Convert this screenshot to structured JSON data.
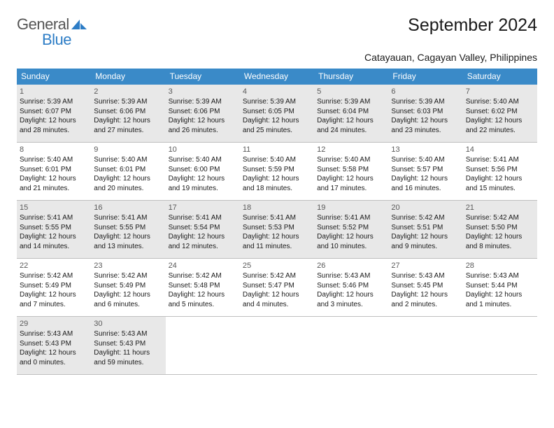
{
  "logo": {
    "text1": "General",
    "text2": "Blue"
  },
  "title": "September 2024",
  "location": "Catayauan, Cagayan Valley, Philippines",
  "colors": {
    "header_bg": "#3a8ac8",
    "header_text": "#ffffff",
    "row_top_border": "#3a8ac8",
    "row_bottom_border": "#bfbfbf",
    "gray_cell": "#e8e8e8",
    "body_text": "#1a1a1a",
    "daynum_text": "#5a5a5a",
    "logo_blue": "#2d7dc6",
    "logo_gray": "#555555"
  },
  "typography": {
    "title_fontsize": 25,
    "location_fontsize": 14,
    "dayhead_fontsize": 12,
    "daynum_fontsize": 11,
    "dayinfo_fontsize": 10
  },
  "dayheaders": [
    "Sunday",
    "Monday",
    "Tuesday",
    "Wednesday",
    "Thursday",
    "Friday",
    "Saturday"
  ],
  "weeks": [
    [
      {
        "n": "1",
        "gray": true,
        "sunrise": "5:39 AM",
        "sunset": "6:07 PM",
        "dayh": "12",
        "daym": "28"
      },
      {
        "n": "2",
        "gray": true,
        "sunrise": "5:39 AM",
        "sunset": "6:06 PM",
        "dayh": "12",
        "daym": "27"
      },
      {
        "n": "3",
        "gray": true,
        "sunrise": "5:39 AM",
        "sunset": "6:06 PM",
        "dayh": "12",
        "daym": "26"
      },
      {
        "n": "4",
        "gray": true,
        "sunrise": "5:39 AM",
        "sunset": "6:05 PM",
        "dayh": "12",
        "daym": "25"
      },
      {
        "n": "5",
        "gray": true,
        "sunrise": "5:39 AM",
        "sunset": "6:04 PM",
        "dayh": "12",
        "daym": "24"
      },
      {
        "n": "6",
        "gray": true,
        "sunrise": "5:39 AM",
        "sunset": "6:03 PM",
        "dayh": "12",
        "daym": "23"
      },
      {
        "n": "7",
        "gray": true,
        "sunrise": "5:40 AM",
        "sunset": "6:02 PM",
        "dayh": "12",
        "daym": "22"
      }
    ],
    [
      {
        "n": "8",
        "sunrise": "5:40 AM",
        "sunset": "6:01 PM",
        "dayh": "12",
        "daym": "21"
      },
      {
        "n": "9",
        "sunrise": "5:40 AM",
        "sunset": "6:01 PM",
        "dayh": "12",
        "daym": "20"
      },
      {
        "n": "10",
        "sunrise": "5:40 AM",
        "sunset": "6:00 PM",
        "dayh": "12",
        "daym": "19"
      },
      {
        "n": "11",
        "sunrise": "5:40 AM",
        "sunset": "5:59 PM",
        "dayh": "12",
        "daym": "18"
      },
      {
        "n": "12",
        "sunrise": "5:40 AM",
        "sunset": "5:58 PM",
        "dayh": "12",
        "daym": "17"
      },
      {
        "n": "13",
        "sunrise": "5:40 AM",
        "sunset": "5:57 PM",
        "dayh": "12",
        "daym": "16"
      },
      {
        "n": "14",
        "sunrise": "5:41 AM",
        "sunset": "5:56 PM",
        "dayh": "12",
        "daym": "15"
      }
    ],
    [
      {
        "n": "15",
        "gray": true,
        "sunrise": "5:41 AM",
        "sunset": "5:55 PM",
        "dayh": "12",
        "daym": "14"
      },
      {
        "n": "16",
        "gray": true,
        "sunrise": "5:41 AM",
        "sunset": "5:55 PM",
        "dayh": "12",
        "daym": "13"
      },
      {
        "n": "17",
        "gray": true,
        "sunrise": "5:41 AM",
        "sunset": "5:54 PM",
        "dayh": "12",
        "daym": "12"
      },
      {
        "n": "18",
        "gray": true,
        "sunrise": "5:41 AM",
        "sunset": "5:53 PM",
        "dayh": "12",
        "daym": "11"
      },
      {
        "n": "19",
        "gray": true,
        "sunrise": "5:41 AM",
        "sunset": "5:52 PM",
        "dayh": "12",
        "daym": "10"
      },
      {
        "n": "20",
        "gray": true,
        "sunrise": "5:42 AM",
        "sunset": "5:51 PM",
        "dayh": "12",
        "daym": "9"
      },
      {
        "n": "21",
        "gray": true,
        "sunrise": "5:42 AM",
        "sunset": "5:50 PM",
        "dayh": "12",
        "daym": "8"
      }
    ],
    [
      {
        "n": "22",
        "sunrise": "5:42 AM",
        "sunset": "5:49 PM",
        "dayh": "12",
        "daym": "7"
      },
      {
        "n": "23",
        "sunrise": "5:42 AM",
        "sunset": "5:49 PM",
        "dayh": "12",
        "daym": "6"
      },
      {
        "n": "24",
        "sunrise": "5:42 AM",
        "sunset": "5:48 PM",
        "dayh": "12",
        "daym": "5"
      },
      {
        "n": "25",
        "sunrise": "5:42 AM",
        "sunset": "5:47 PM",
        "dayh": "12",
        "daym": "4"
      },
      {
        "n": "26",
        "sunrise": "5:43 AM",
        "sunset": "5:46 PM",
        "dayh": "12",
        "daym": "3"
      },
      {
        "n": "27",
        "sunrise": "5:43 AM",
        "sunset": "5:45 PM",
        "dayh": "12",
        "daym": "2"
      },
      {
        "n": "28",
        "sunrise": "5:43 AM",
        "sunset": "5:44 PM",
        "dayh": "12",
        "daym": "1"
      }
    ],
    [
      {
        "n": "29",
        "gray": true,
        "sunrise": "5:43 AM",
        "sunset": "5:43 PM",
        "dayh": "12",
        "daym": "0"
      },
      {
        "n": "30",
        "gray": true,
        "sunrise": "5:43 AM",
        "sunset": "5:43 PM",
        "dayh": "11",
        "daym": "59"
      },
      null,
      null,
      null,
      null,
      null
    ]
  ]
}
